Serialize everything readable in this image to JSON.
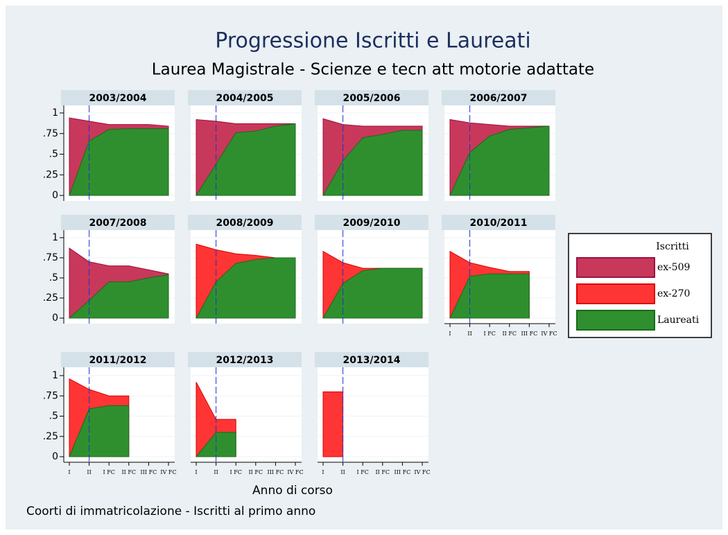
{
  "title": "Progressione Iscritti e Laureati",
  "subtitle": "Laurea Magistrale - Scienze e tecn att motorie adattate",
  "xlabel": "Anno di corso",
  "note": "Coorti di immatricolazione - Iscritti al primo anno",
  "legend": {
    "title": "Iscritti"
  },
  "series": [
    {
      "name": "ex-509",
      "color": "#c8385a",
      "stroke": "#9e1040"
    },
    {
      "name": "ex-270",
      "color": "#ff3535",
      "stroke": "#dd0000"
    },
    {
      "name": "Laureati",
      "color": "#2f8f2f",
      "stroke": "#1a6b1a"
    }
  ],
  "categories": [
    "I",
    "II",
    "I FC",
    "II FC",
    "III FC",
    "IV FC"
  ],
  "ylim": [
    0,
    1
  ],
  "yticks": [
    0,
    {
      "value": 0.25,
      "label": ".25"
    },
    {
      "value": 0.5,
      "label": ".5"
    },
    {
      "value": 0.75,
      "label": ".75"
    },
    1
  ],
  "chart_data": [
    {
      "type": "area",
      "title": "2003/2004",
      "series": [
        {
          "values": [
            0.94,
            0.9,
            0.86,
            0.86,
            0.86,
            0.84
          ]
        },
        {
          "values": [
            null,
            null,
            null,
            null,
            null,
            null
          ]
        },
        {
          "values": [
            0,
            0.66,
            0.8,
            0.81,
            0.81,
            0.81
          ]
        }
      ]
    },
    {
      "type": "area",
      "title": "2004/2005",
      "series": [
        {
          "values": [
            0.92,
            0.9,
            0.87,
            0.87,
            0.87,
            0.87
          ]
        },
        {
          "values": [
            null,
            null,
            null,
            null,
            null,
            null
          ]
        },
        {
          "values": [
            0,
            0.38,
            0.76,
            0.78,
            0.84,
            0.87
          ]
        }
      ]
    },
    {
      "type": "area",
      "title": "2005/2006",
      "series": [
        {
          "values": [
            0.93,
            0.86,
            0.84,
            0.84,
            0.84,
            0.84
          ]
        },
        {
          "values": [
            null,
            null,
            null,
            null,
            null,
            null
          ]
        },
        {
          "values": [
            0,
            0.42,
            0.7,
            0.74,
            0.79,
            0.79
          ]
        }
      ]
    },
    {
      "type": "area",
      "title": "2006/2007",
      "series": [
        {
          "values": [
            0.92,
            0.88,
            0.86,
            0.84,
            0.84,
            0.84
          ]
        },
        {
          "values": [
            null,
            null,
            null,
            null,
            null,
            null
          ]
        },
        {
          "values": [
            0,
            0.52,
            0.72,
            0.8,
            0.82,
            0.84
          ]
        }
      ]
    },
    {
      "type": "area",
      "title": "2007/2008",
      "series": [
        {
          "values": [
            0.87,
            0.7,
            0.65,
            0.65,
            0.6,
            0.55
          ]
        },
        {
          "values": [
            null,
            null,
            null,
            null,
            null,
            null
          ]
        },
        {
          "values": [
            0,
            0.22,
            0.45,
            0.45,
            0.5,
            0.54
          ]
        }
      ]
    },
    {
      "type": "area",
      "title": "2008/2009",
      "series": [
        {
          "values": [
            null,
            null,
            null,
            null,
            null,
            null
          ]
        },
        {
          "values": [
            0.92,
            0.85,
            0.8,
            0.78,
            0.75,
            0.75
          ]
        },
        {
          "values": [
            0,
            0.45,
            0.68,
            0.73,
            0.75,
            0.75
          ]
        }
      ]
    },
    {
      "type": "area",
      "title": "2009/2010",
      "series": [
        {
          "values": [
            null,
            null,
            null,
            null,
            null,
            null
          ]
        },
        {
          "values": [
            0.83,
            0.69,
            0.62,
            0.62,
            0.62,
            0.62
          ]
        },
        {
          "values": [
            0,
            0.43,
            0.59,
            0.62,
            0.62,
            0.62
          ]
        }
      ]
    },
    {
      "type": "area",
      "title": "2010/2011",
      "series": [
        {
          "values": [
            null,
            null,
            null,
            null,
            null,
            null
          ]
        },
        {
          "values": [
            0.83,
            0.69,
            0.63,
            0.58,
            0.58,
            null
          ]
        },
        {
          "values": [
            0,
            0.52,
            0.55,
            0.55,
            0.55,
            null
          ]
        }
      ]
    },
    {
      "type": "area",
      "title": "2011/2012",
      "series": [
        {
          "values": [
            null,
            null,
            null,
            null,
            null,
            null
          ]
        },
        {
          "values": [
            0.96,
            0.83,
            0.75,
            0.75,
            null,
            null
          ]
        },
        {
          "values": [
            0,
            0.59,
            0.63,
            0.63,
            null,
            null
          ]
        }
      ]
    },
    {
      "type": "area",
      "title": "2012/2013",
      "series": [
        {
          "values": [
            null,
            null,
            null,
            null,
            null,
            null
          ]
        },
        {
          "values": [
            0.92,
            0.46,
            0.46,
            null,
            null,
            null
          ]
        },
        {
          "values": [
            0,
            0.3,
            0.3,
            null,
            null,
            null
          ]
        }
      ]
    },
    {
      "type": "area",
      "title": "2013/2014",
      "series": [
        {
          "values": [
            null,
            null,
            null,
            null,
            null,
            null
          ]
        },
        {
          "values": [
            0.8,
            0.8,
            null,
            null,
            null,
            null
          ]
        },
        {
          "values": [
            null,
            null,
            null,
            null,
            null,
            null
          ]
        }
      ]
    }
  ]
}
